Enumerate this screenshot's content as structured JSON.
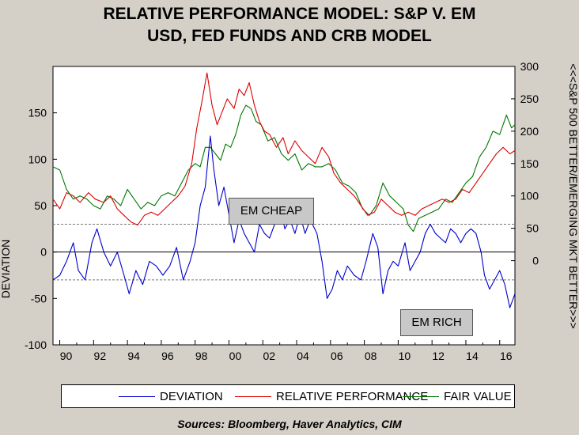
{
  "title_line1": "RELATIVE PERFORMANCE MODEL: S&P V. EM",
  "title_line2": "USD, FED FUNDS AND CRB MODEL",
  "left_axis_label": "DEVIATION",
  "right_axis_label": "<<<S&P 500 BETTER/EMERGING MKT BETTER>>>",
  "annotations": {
    "em_cheap": "EM CHEAP",
    "em_rich": "EM RICH"
  },
  "source": "Sources:  Bloomberg, Haver Analytics, CIM",
  "legend": [
    "DEVIATION",
    "RELATIVE PERFORMANCE",
    "FAIR VALUE"
  ],
  "colors": {
    "deviation": "#0000cc",
    "relative": "#dd0000",
    "fair": "#007700",
    "background": "#d4d0c8"
  },
  "chart_data": {
    "type": "line",
    "x_ticks": [
      "90",
      "92",
      "94",
      "96",
      "98",
      "00",
      "02",
      "04",
      "06",
      "08",
      "10",
      "12",
      "14",
      "16"
    ],
    "x_range": [
      1989.6,
      2016.9
    ],
    "left_axis": {
      "ticks": [
        "150",
        "100",
        "50",
        "0",
        "-50",
        "-100"
      ],
      "range": [
        -100,
        200
      ]
    },
    "right_axis": {
      "ticks": [
        "300",
        "250",
        "200",
        "150",
        "100",
        "50",
        "0"
      ],
      "range": [
        -130,
        300
      ]
    },
    "reference_lines_left": [
      30,
      0,
      -30
    ],
    "series": [
      {
        "name": "DEVIATION",
        "axis": "left",
        "points": [
          [
            1989.6,
            -30
          ],
          [
            1990.0,
            -25
          ],
          [
            1990.4,
            -10
          ],
          [
            1990.8,
            10
          ],
          [
            1991.1,
            -20
          ],
          [
            1991.5,
            -30
          ],
          [
            1991.9,
            10
          ],
          [
            1992.2,
            25
          ],
          [
            1992.6,
            0
          ],
          [
            1993.0,
            -15
          ],
          [
            1993.4,
            0
          ],
          [
            1993.8,
            -25
          ],
          [
            1994.1,
            -45
          ],
          [
            1994.5,
            -20
          ],
          [
            1994.9,
            -35
          ],
          [
            1995.3,
            -10
          ],
          [
            1995.7,
            -15
          ],
          [
            1996.1,
            -25
          ],
          [
            1996.5,
            -15
          ],
          [
            1996.9,
            5
          ],
          [
            1997.3,
            -30
          ],
          [
            1997.7,
            -10
          ],
          [
            1998.0,
            10
          ],
          [
            1998.3,
            50
          ],
          [
            1998.6,
            70
          ],
          [
            1998.9,
            125
          ],
          [
            1999.1,
            90
          ],
          [
            1999.4,
            50
          ],
          [
            1999.7,
            70
          ],
          [
            2000.0,
            40
          ],
          [
            2000.3,
            10
          ],
          [
            2000.6,
            35
          ],
          [
            2000.9,
            20
          ],
          [
            2001.2,
            10
          ],
          [
            2001.5,
            0
          ],
          [
            2001.8,
            30
          ],
          [
            2002.1,
            20
          ],
          [
            2002.4,
            15
          ],
          [
            2002.7,
            30
          ],
          [
            2003.0,
            50
          ],
          [
            2003.3,
            25
          ],
          [
            2003.6,
            35
          ],
          [
            2003.9,
            20
          ],
          [
            2004.2,
            40
          ],
          [
            2004.5,
            20
          ],
          [
            2004.8,
            35
          ],
          [
            2005.2,
            20
          ],
          [
            2005.5,
            -10
          ],
          [
            2005.8,
            -50
          ],
          [
            2006.1,
            -40
          ],
          [
            2006.4,
            -20
          ],
          [
            2006.7,
            -30
          ],
          [
            2007.0,
            -15
          ],
          [
            2007.4,
            -25
          ],
          [
            2007.8,
            -30
          ],
          [
            2008.1,
            -10
          ],
          [
            2008.5,
            20
          ],
          [
            2008.8,
            5
          ],
          [
            2009.1,
            -45
          ],
          [
            2009.4,
            -20
          ],
          [
            2009.7,
            -10
          ],
          [
            2010.0,
            -15
          ],
          [
            2010.4,
            10
          ],
          [
            2010.7,
            -20
          ],
          [
            2011.0,
            -10
          ],
          [
            2011.3,
            0
          ],
          [
            2011.6,
            20
          ],
          [
            2011.9,
            30
          ],
          [
            2012.2,
            20
          ],
          [
            2012.5,
            15
          ],
          [
            2012.8,
            10
          ],
          [
            2013.1,
            25
          ],
          [
            2013.4,
            20
          ],
          [
            2013.7,
            10
          ],
          [
            2014.0,
            20
          ],
          [
            2014.3,
            25
          ],
          [
            2014.6,
            20
          ],
          [
            2014.9,
            0
          ],
          [
            2015.1,
            -25
          ],
          [
            2015.4,
            -40
          ],
          [
            2015.7,
            -30
          ],
          [
            2016.0,
            -20
          ],
          [
            2016.3,
            -35
          ],
          [
            2016.6,
            -60
          ],
          [
            2016.9,
            -45
          ]
        ]
      },
      {
        "name": "RELATIVE PERFORMANCE",
        "axis": "right",
        "points": [
          [
            1989.6,
            95
          ],
          [
            1990.0,
            80
          ],
          [
            1990.4,
            105
          ],
          [
            1990.8,
            100
          ],
          [
            1991.2,
            90
          ],
          [
            1991.7,
            105
          ],
          [
            1992.1,
            95
          ],
          [
            1992.6,
            90
          ],
          [
            1993.0,
            100
          ],
          [
            1993.4,
            80
          ],
          [
            1993.8,
            70
          ],
          [
            1994.2,
            60
          ],
          [
            1994.6,
            55
          ],
          [
            1995.0,
            70
          ],
          [
            1995.4,
            75
          ],
          [
            1995.8,
            70
          ],
          [
            1996.2,
            80
          ],
          [
            1996.6,
            90
          ],
          [
            1997.0,
            100
          ],
          [
            1997.4,
            115
          ],
          [
            1997.8,
            150
          ],
          [
            1998.1,
            205
          ],
          [
            1998.4,
            245
          ],
          [
            1998.7,
            290
          ],
          [
            1999.0,
            240
          ],
          [
            1999.3,
            210
          ],
          [
            1999.6,
            230
          ],
          [
            1999.9,
            250
          ],
          [
            2000.3,
            235
          ],
          [
            2000.6,
            265
          ],
          [
            2000.9,
            255
          ],
          [
            2001.2,
            275
          ],
          [
            2001.5,
            240
          ],
          [
            2001.8,
            215
          ],
          [
            2002.1,
            200
          ],
          [
            2002.4,
            195
          ],
          [
            2002.8,
            175
          ],
          [
            2003.2,
            190
          ],
          [
            2003.5,
            165
          ],
          [
            2003.9,
            185
          ],
          [
            2004.3,
            170
          ],
          [
            2004.7,
            160
          ],
          [
            2005.1,
            150
          ],
          [
            2005.5,
            175
          ],
          [
            2005.9,
            160
          ],
          [
            2006.2,
            135
          ],
          [
            2006.6,
            120
          ],
          [
            2007.0,
            110
          ],
          [
            2007.4,
            100
          ],
          [
            2007.8,
            85
          ],
          [
            2008.2,
            70
          ],
          [
            2008.6,
            75
          ],
          [
            2009.0,
            95
          ],
          [
            2009.4,
            85
          ],
          [
            2009.8,
            75
          ],
          [
            2010.2,
            70
          ],
          [
            2010.6,
            75
          ],
          [
            2011.0,
            70
          ],
          [
            2011.4,
            80
          ],
          [
            2011.8,
            85
          ],
          [
            2012.2,
            90
          ],
          [
            2012.6,
            95
          ],
          [
            2013.0,
            90
          ],
          [
            2013.4,
            95
          ],
          [
            2013.8,
            110
          ],
          [
            2014.2,
            105
          ],
          [
            2014.6,
            120
          ],
          [
            2015.0,
            135
          ],
          [
            2015.4,
            150
          ],
          [
            2015.8,
            165
          ],
          [
            2016.2,
            175
          ],
          [
            2016.6,
            165
          ],
          [
            2016.9,
            170
          ]
        ]
      },
      {
        "name": "FAIR VALUE",
        "axis": "right",
        "points": [
          [
            1989.6,
            145
          ],
          [
            1990.0,
            140
          ],
          [
            1990.4,
            110
          ],
          [
            1990.8,
            95
          ],
          [
            1991.2,
            100
          ],
          [
            1991.6,
            95
          ],
          [
            1992.0,
            85
          ],
          [
            1992.4,
            80
          ],
          [
            1992.8,
            100
          ],
          [
            1993.2,
            95
          ],
          [
            1993.6,
            85
          ],
          [
            1994.0,
            110
          ],
          [
            1994.4,
            95
          ],
          [
            1994.8,
            80
          ],
          [
            1995.2,
            90
          ],
          [
            1995.6,
            85
          ],
          [
            1996.0,
            100
          ],
          [
            1996.4,
            105
          ],
          [
            1996.8,
            100
          ],
          [
            1997.2,
            120
          ],
          [
            1997.6,
            140
          ],
          [
            1998.0,
            150
          ],
          [
            1998.3,
            145
          ],
          [
            1998.6,
            175
          ],
          [
            1998.9,
            175
          ],
          [
            1999.2,
            165
          ],
          [
            1999.5,
            155
          ],
          [
            1999.8,
            180
          ],
          [
            2000.1,
            175
          ],
          [
            2000.4,
            195
          ],
          [
            2000.7,
            225
          ],
          [
            2001.0,
            240
          ],
          [
            2001.3,
            235
          ],
          [
            2001.6,
            215
          ],
          [
            2001.9,
            210
          ],
          [
            2002.3,
            185
          ],
          [
            2002.7,
            190
          ],
          [
            2003.1,
            165
          ],
          [
            2003.5,
            155
          ],
          [
            2003.9,
            165
          ],
          [
            2004.3,
            140
          ],
          [
            2004.7,
            150
          ],
          [
            2005.1,
            145
          ],
          [
            2005.5,
            145
          ],
          [
            2005.9,
            150
          ],
          [
            2006.3,
            140
          ],
          [
            2006.7,
            120
          ],
          [
            2007.1,
            115
          ],
          [
            2007.5,
            105
          ],
          [
            2007.9,
            80
          ],
          [
            2008.3,
            70
          ],
          [
            2008.7,
            85
          ],
          [
            2009.1,
            120
          ],
          [
            2009.5,
            100
          ],
          [
            2009.9,
            90
          ],
          [
            2010.3,
            80
          ],
          [
            2010.6,
            55
          ],
          [
            2010.9,
            45
          ],
          [
            2011.2,
            65
          ],
          [
            2011.6,
            70
          ],
          [
            2012.0,
            75
          ],
          [
            2012.4,
            80
          ],
          [
            2012.8,
            95
          ],
          [
            2013.2,
            90
          ],
          [
            2013.6,
            105
          ],
          [
            2014.0,
            120
          ],
          [
            2014.4,
            130
          ],
          [
            2014.8,
            160
          ],
          [
            2015.2,
            175
          ],
          [
            2015.6,
            200
          ],
          [
            2016.0,
            195
          ],
          [
            2016.4,
            225
          ],
          [
            2016.7,
            205
          ],
          [
            2016.9,
            210
          ]
        ]
      }
    ]
  }
}
